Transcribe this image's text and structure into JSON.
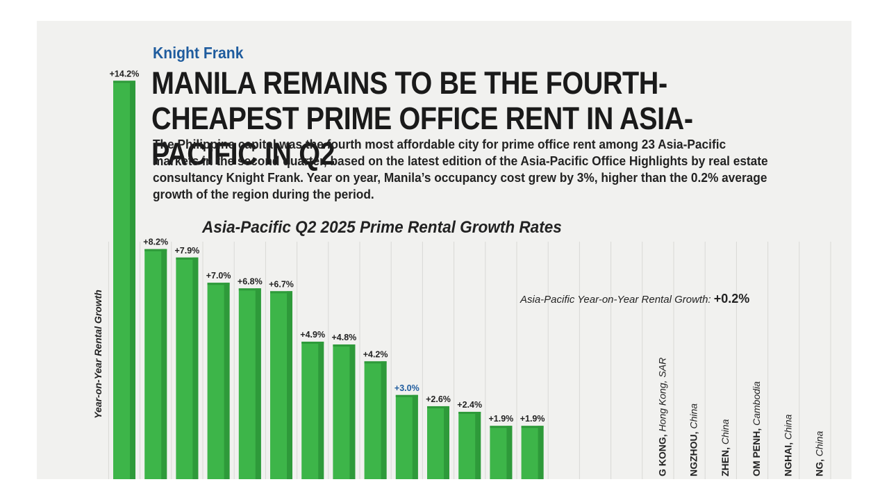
{
  "header": {
    "brand": "Knight Frank",
    "headline": "MANILA REMAINS TO BE THE FOURTH-CHEAPEST PRIME OFFICE RENT IN ASIA-PACIFIC IN Q2",
    "blurb": "The Philippine capital was the fourth most affordable city for prime office rent among 23 Asia-Pacific markets in the second quarter, based on the latest edition of the Asia-Pacific Office Highlights by real estate consultancy Knight Frank. Year on year, Manila’s occupancy cost grew by 3%, higher than the 0.2% average growth of the region during the period."
  },
  "annotation": {
    "label": "Asia-Pacific Year-on-Year Rental Growth:",
    "value": "+0.2%"
  },
  "colors": {
    "bar": "#3db549",
    "bar_shade": "#2e9a3a",
    "highlight_label": "#1f5c9e",
    "background": "#f1f1ef",
    "grid": "#d9d9d6"
  },
  "chart_data": {
    "type": "bar",
    "title": "Asia-Pacific Q2 2025 Prime Rental Growth Rates",
    "xlabel": "",
    "ylabel": "Year-on-Year Rental Growth",
    "grid": true,
    "highlight_index": 9,
    "values": [
      14.2,
      8.2,
      7.9,
      7.0,
      6.8,
      6.7,
      4.9,
      4.8,
      4.2,
      3.0,
      2.6,
      2.4,
      1.9,
      1.9
    ],
    "value_labels": [
      "+14.2%",
      "+8.2%",
      "+7.9%",
      "+7.0%",
      "+6.8%",
      "+6.7%",
      "+4.9%",
      "+4.8%",
      "+4.2%",
      "+3.0%",
      "+2.6%",
      "+2.4%",
      "+1.9%",
      "+1.9%"
    ],
    "cropped_category_labels": [
      {
        "city": "G KONG",
        "country": "Hong Kong, SAR"
      },
      {
        "city": "NGZHOU",
        "country": "China"
      },
      {
        "city": "ZHEN",
        "country": "China"
      },
      {
        "city": "OM PENH",
        "country": "Cambodia"
      },
      {
        "city": "NGHAI",
        "country": "China"
      },
      {
        "city": "NG",
        "country": "China"
      }
    ]
  }
}
